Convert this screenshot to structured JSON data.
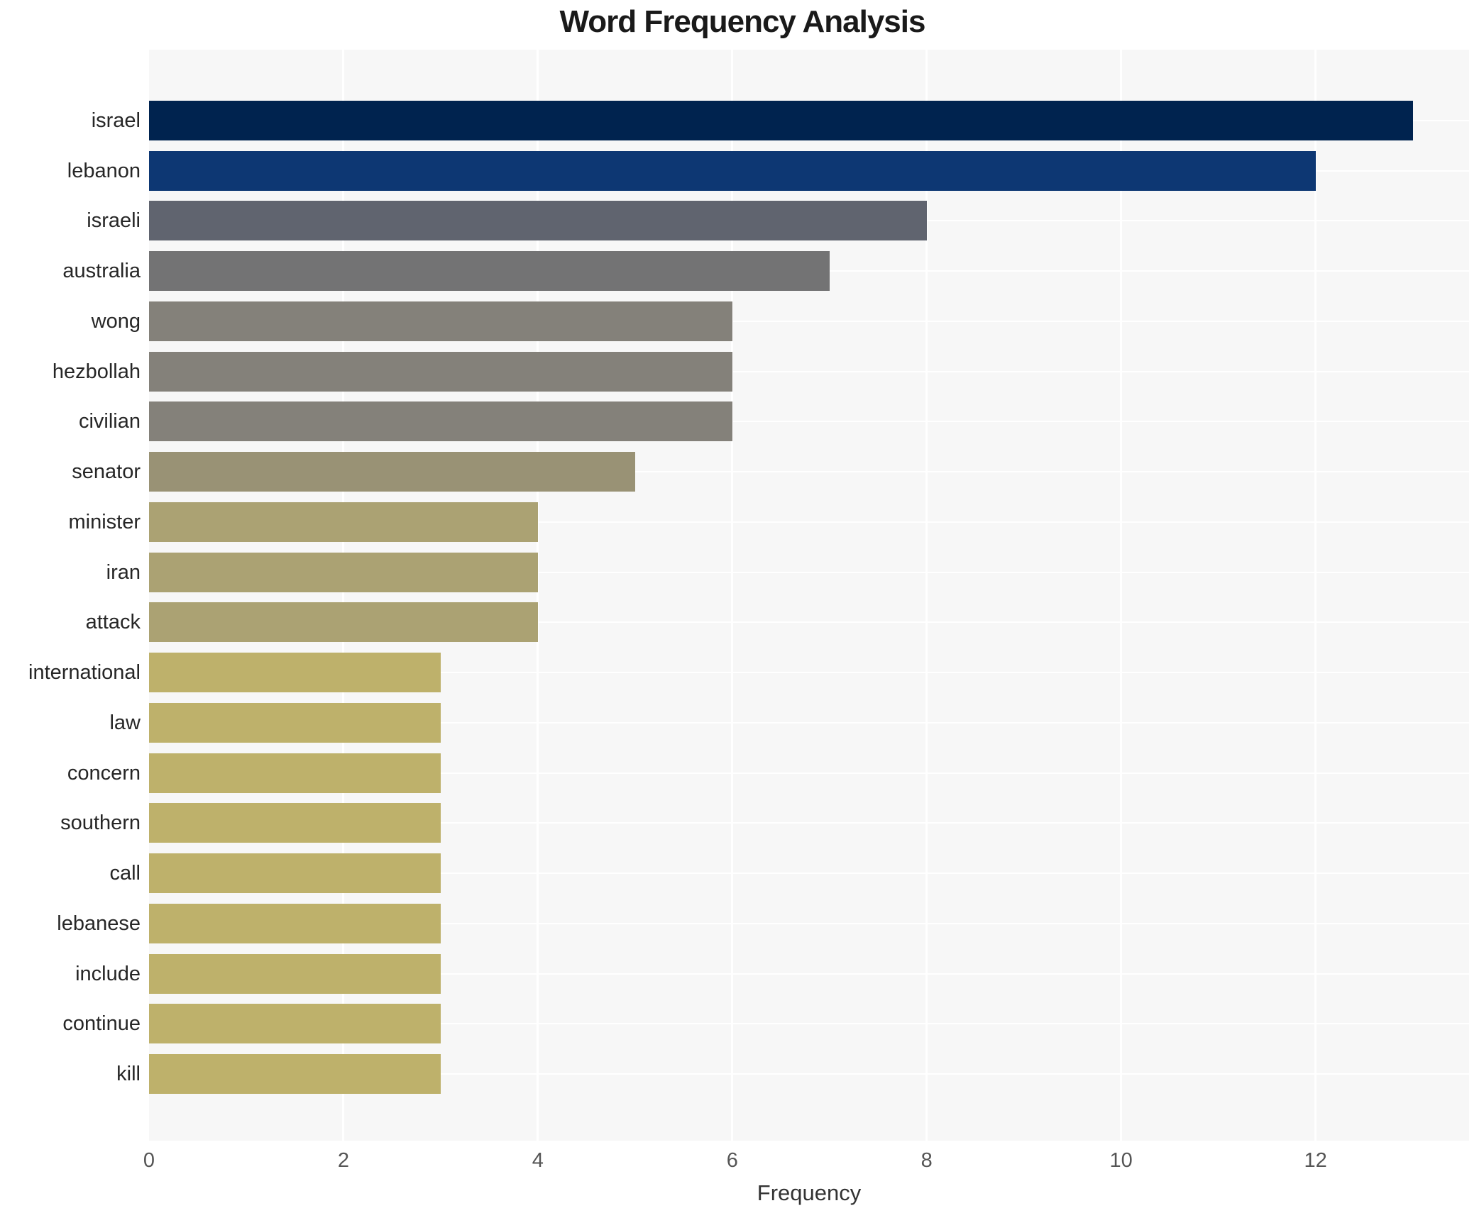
{
  "chart_data": {
    "type": "bar",
    "orientation": "horizontal",
    "title": "Word Frequency Analysis",
    "xlabel": "Frequency",
    "categories": [
      "israel",
      "lebanon",
      "israeli",
      "australia",
      "wong",
      "hezbollah",
      "civilian",
      "senator",
      "minister",
      "iran",
      "attack",
      "international",
      "law",
      "concern",
      "southern",
      "call",
      "lebanese",
      "include",
      "continue",
      "kill"
    ],
    "values": [
      13,
      12,
      8,
      7,
      6,
      6,
      6,
      5,
      4,
      4,
      4,
      3,
      3,
      3,
      3,
      3,
      3,
      3,
      3,
      3
    ],
    "bar_colors": [
      "#00234f",
      "#0d3773",
      "#60646f",
      "#737374",
      "#84817a",
      "#84817a",
      "#84817a",
      "#999275",
      "#aba273",
      "#aba273",
      "#aba273",
      "#beb16b",
      "#beb16b",
      "#beb16b",
      "#beb16b",
      "#beb16b",
      "#beb16b",
      "#beb16b",
      "#beb16b",
      "#beb16b"
    ],
    "xticks": [
      0,
      2,
      4,
      6,
      8,
      10,
      12
    ],
    "xlim": [
      0,
      13.58
    ],
    "grid": true,
    "legend": "none",
    "colors": {
      "background": "#ffffff",
      "plot_background": "#f7f7f7",
      "grid": "#ffffff",
      "title_text": "#1a1a1a",
      "label_text": "#262626",
      "tick_text": "#555555",
      "axis_title_text": "#333333"
    }
  }
}
